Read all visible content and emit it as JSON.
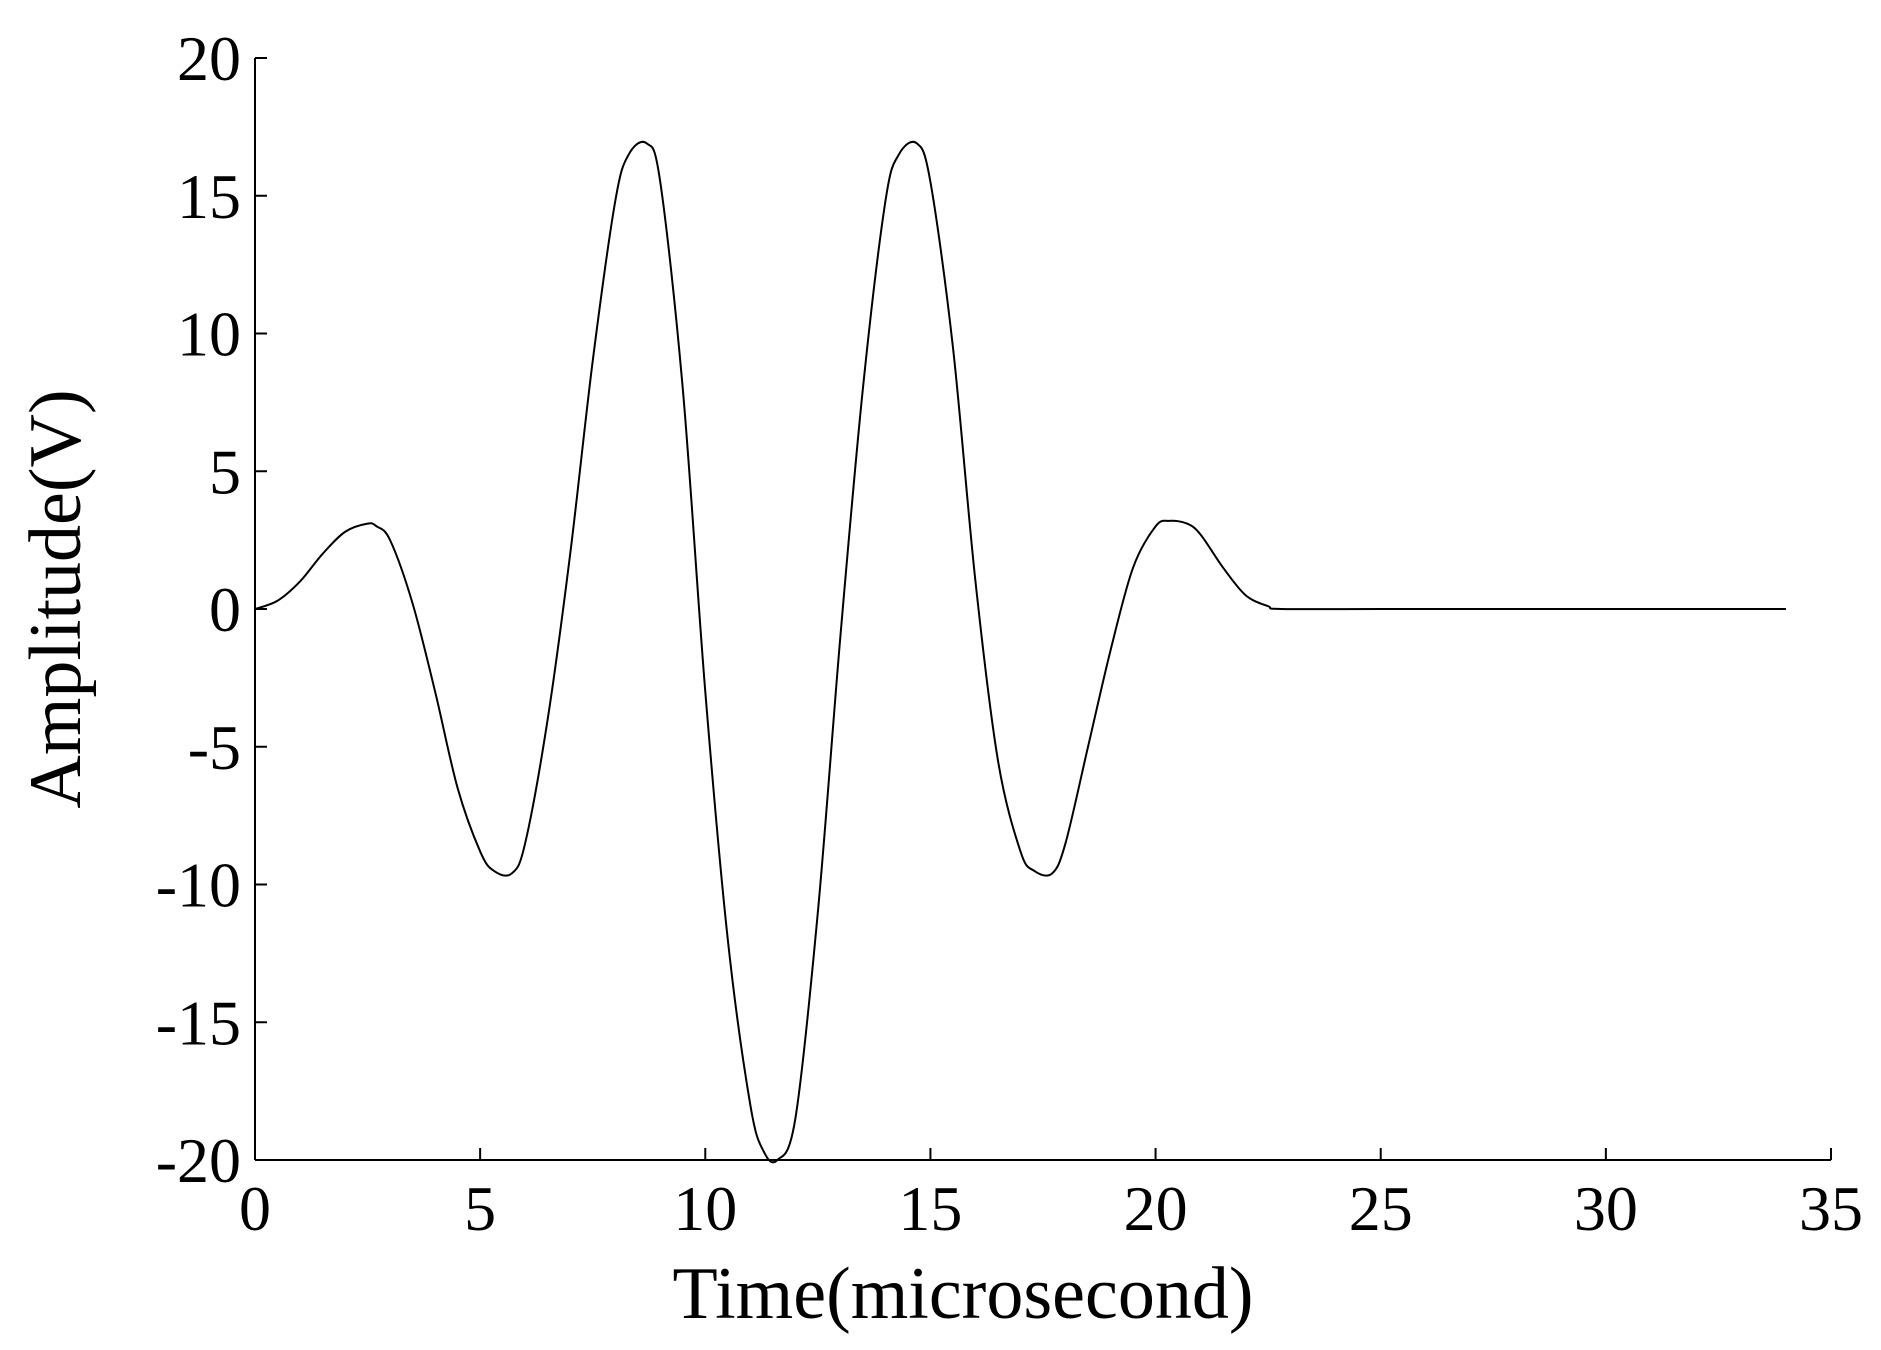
{
  "chart_data": {
    "type": "line",
    "title": "",
    "xlabel": "Time(microsecond)",
    "ylabel": "Amplitude(V)",
    "xlim": [
      0,
      35
    ],
    "ylim": [
      -20,
      20
    ],
    "xticks": [
      0,
      5,
      10,
      15,
      20,
      25,
      30,
      35
    ],
    "yticks": [
      -20,
      -15,
      -10,
      -5,
      0,
      5,
      10,
      15,
      20
    ],
    "grid": false,
    "legend": "none",
    "line_color": "#000000",
    "series": [
      {
        "x": [
          0,
          0.5,
          1,
          1.5,
          2,
          2.5,
          2.7,
          3,
          3.5,
          4,
          4.5,
          5,
          5.3,
          5.7,
          6,
          6.5,
          7,
          7.5,
          8,
          8.3,
          8.7,
          9,
          9.5,
          10,
          10.5,
          11,
          11.3,
          11.6,
          12,
          12.5,
          13,
          13.5,
          14,
          14.3,
          14.7,
          15,
          15.5,
          16,
          16.5,
          17,
          17.3,
          17.7,
          18,
          18.5,
          19,
          19.5,
          20,
          20.3,
          20.7,
          21,
          21.5,
          22,
          22.5,
          22.8,
          25,
          30,
          34
        ],
        "y": [
          0,
          0.3,
          1.0,
          2.0,
          2.8,
          3.1,
          3.0,
          2.5,
          0.2,
          -3.0,
          -6.5,
          -8.8,
          -9.5,
          -9.6,
          -8.5,
          -4.0,
          2.0,
          9.0,
          14.8,
          16.5,
          16.9,
          15.5,
          8.0,
          -3.0,
          -12.0,
          -18.0,
          -19.7,
          -20.0,
          -18.5,
          -11.0,
          -1.0,
          8.0,
          14.8,
          16.5,
          16.9,
          15.5,
          9.5,
          1.0,
          -5.5,
          -8.8,
          -9.5,
          -9.6,
          -8.5,
          -5.0,
          -1.5,
          1.5,
          3.0,
          3.2,
          3.1,
          2.7,
          1.5,
          0.5,
          0.1,
          0,
          0,
          0,
          0
        ]
      }
    ]
  }
}
